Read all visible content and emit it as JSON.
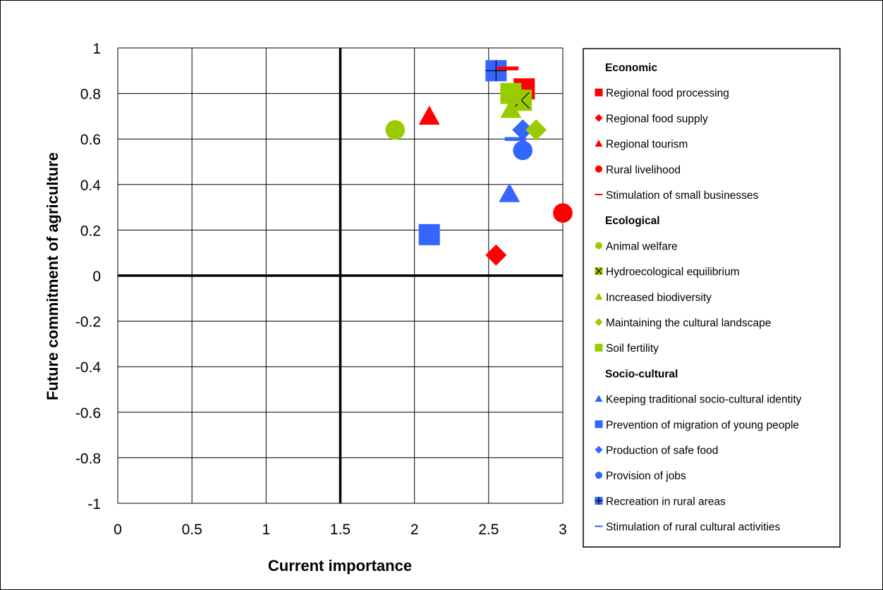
{
  "chart_data": {
    "type": "scatter",
    "title": "",
    "xlabel": "Current importance",
    "ylabel": "Future commitment of agriculture",
    "xlim": [
      0,
      3
    ],
    "ylim": [
      -1,
      1
    ],
    "x_ticks": [
      "0",
      "0.5",
      "1",
      "1.5",
      "2",
      "2.5",
      "3"
    ],
    "y_ticks": [
      "1",
      "0.8",
      "0.6",
      "0.4",
      "0.2",
      "0",
      "-0.2",
      "-0.4",
      "-0.6",
      "-0.8",
      "-1"
    ],
    "grid": true,
    "reference_lines": {
      "x": 1.5,
      "y": 0
    },
    "legend_position": "right",
    "groups": [
      {
        "name": "Economic",
        "color": "#ff0000",
        "series": [
          {
            "name": "Regional food processing",
            "marker": "square",
            "x": 2.74,
            "y": 0.82
          },
          {
            "name": "Regional food supply",
            "marker": "diamond",
            "x": 2.55,
            "y": 0.09
          },
          {
            "name": "Regional tourism",
            "marker": "triangle",
            "x": 2.1,
            "y": 0.7
          },
          {
            "name": "Rural livelihood",
            "marker": "circle",
            "x": 3.0,
            "y": 0.275
          },
          {
            "name": "Stimulation of small businesses",
            "marker": "dash",
            "x": 2.63,
            "y": 0.91
          }
        ]
      },
      {
        "name": "Ecological",
        "color": "#99cc00",
        "series": [
          {
            "name": "Animal welfare",
            "marker": "circle",
            "x": 1.87,
            "y": 0.64
          },
          {
            "name": "Hydroecological equilibrium",
            "marker": "x-square",
            "x": 2.72,
            "y": 0.77
          },
          {
            "name": "Increased biodiversity",
            "marker": "triangle",
            "x": 2.65,
            "y": 0.73
          },
          {
            "name": "Maintaining the cultural landscape",
            "marker": "diamond",
            "x": 2.82,
            "y": 0.64
          },
          {
            "name": "Soil fertility",
            "marker": "square",
            "x": 2.65,
            "y": 0.8
          }
        ]
      },
      {
        "name": "Socio-cultural",
        "color": "#3366ff",
        "series": [
          {
            "name": "Keeping traditional socio-cultural identity",
            "marker": "triangle",
            "x": 2.64,
            "y": 0.36
          },
          {
            "name": "Prevention of migration of young people",
            "marker": "square",
            "x": 2.1,
            "y": 0.18
          },
          {
            "name": "Production of safe food",
            "marker": "diamond",
            "x": 2.73,
            "y": 0.64
          },
          {
            "name": "Provision of jobs",
            "marker": "circle",
            "x": 2.73,
            "y": 0.55
          },
          {
            "name": "Recreation in rural areas",
            "marker": "plus-square",
            "x": 2.55,
            "y": 0.9
          },
          {
            "name": "Stimulation of rural cultural activities",
            "marker": "dash",
            "x": 2.68,
            "y": 0.6
          }
        ]
      }
    ]
  }
}
